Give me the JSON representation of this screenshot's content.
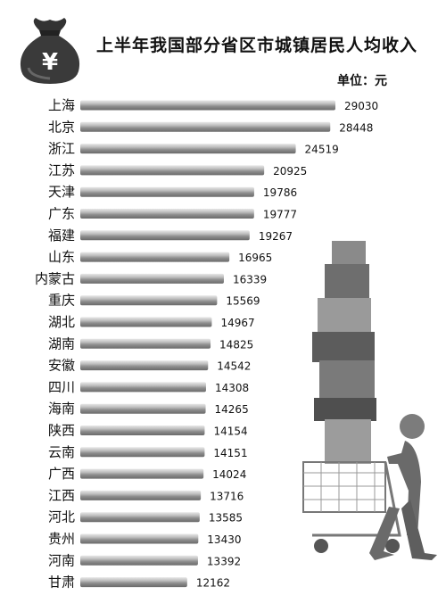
{
  "chart_data": {
    "type": "bar",
    "orientation": "horizontal",
    "title": "上半年我国部分省区市城镇居民人均收入",
    "unit_label": "单位：元",
    "categories": [
      "上海",
      "北京",
      "浙江",
      "江苏",
      "天津",
      "广东",
      "福建",
      "山东",
      "内蒙古",
      "重庆",
      "湖北",
      "湖南",
      "安徽",
      "四川",
      "海南",
      "陕西",
      "云南",
      "广西",
      "江西",
      "河北",
      "贵州",
      "河南",
      "甘肃"
    ],
    "values": [
      29030,
      28448,
      24519,
      20925,
      19786,
      19777,
      19267,
      16965,
      16339,
      15569,
      14967,
      14825,
      14542,
      14308,
      14265,
      14154,
      14151,
      14024,
      13716,
      13585,
      13430,
      13392,
      12162
    ],
    "bar_color": "#9a9a9a",
    "grid": false,
    "legend": "none"
  },
  "decor": {
    "bag_icon": "money-bag-yen-icon",
    "bag_symbol": "¥",
    "illustration": "figure-pushing-cart-with-stacked-boxes"
  }
}
